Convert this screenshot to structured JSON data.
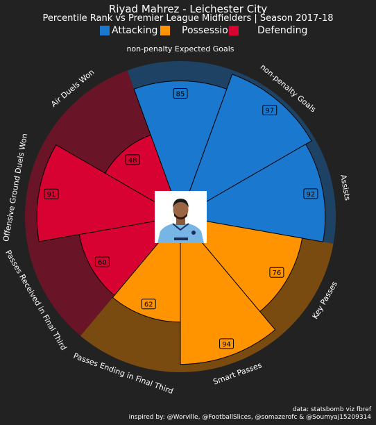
{
  "header": {
    "title": "Riyad Mahrez - Leichester City",
    "subtitle": "Percentile Rank vs Premier League Midfielders | Season 2017-18"
  },
  "legend": [
    {
      "label": "Attacking",
      "color": "#1a78cf"
    },
    {
      "label": "Possession",
      "color": "#ff9300"
    },
    {
      "label": "Defending",
      "color": "#d70232"
    }
  ],
  "footer": {
    "source": "data: statsbomb viz fbref",
    "credit": "inspired by: @Worville, @FootballSlices, @somazerofc & @Soumyaj15209314"
  },
  "chart_data": {
    "type": "pizza",
    "range": [
      0,
      100
    ],
    "background_color": "#222222",
    "slice_edge_color": "#000000",
    "params": [
      {
        "label": "non-penalty Expected Goals",
        "value": 85,
        "group": "Attacking"
      },
      {
        "label": "non-penalty Goals",
        "value": 97,
        "group": "Attacking"
      },
      {
        "label": "Assists",
        "value": 92,
        "group": "Attacking"
      },
      {
        "label": "Key Passes",
        "value": 76,
        "group": "Possession"
      },
      {
        "label": "Smart Passes",
        "value": 94,
        "group": "Possession"
      },
      {
        "label": "Passes Ending in Final Third",
        "value": 62,
        "group": "Possession"
      },
      {
        "label": "Passes Received in Final Third",
        "value": 60,
        "group": "Defending"
      },
      {
        "label": "Offensive Ground Duels Won",
        "value": 91,
        "group": "Defending"
      },
      {
        "label": "Air Duels Won",
        "value": 48,
        "group": "Defending"
      }
    ],
    "group_colors": {
      "Attacking": {
        "fill": "#1a78cf",
        "background": "#1e4264"
      },
      "Possession": {
        "fill": "#ff9300",
        "background": "#7a4b10"
      },
      "Defending": {
        "fill": "#d70232",
        "background": "#6a1428"
      }
    }
  }
}
